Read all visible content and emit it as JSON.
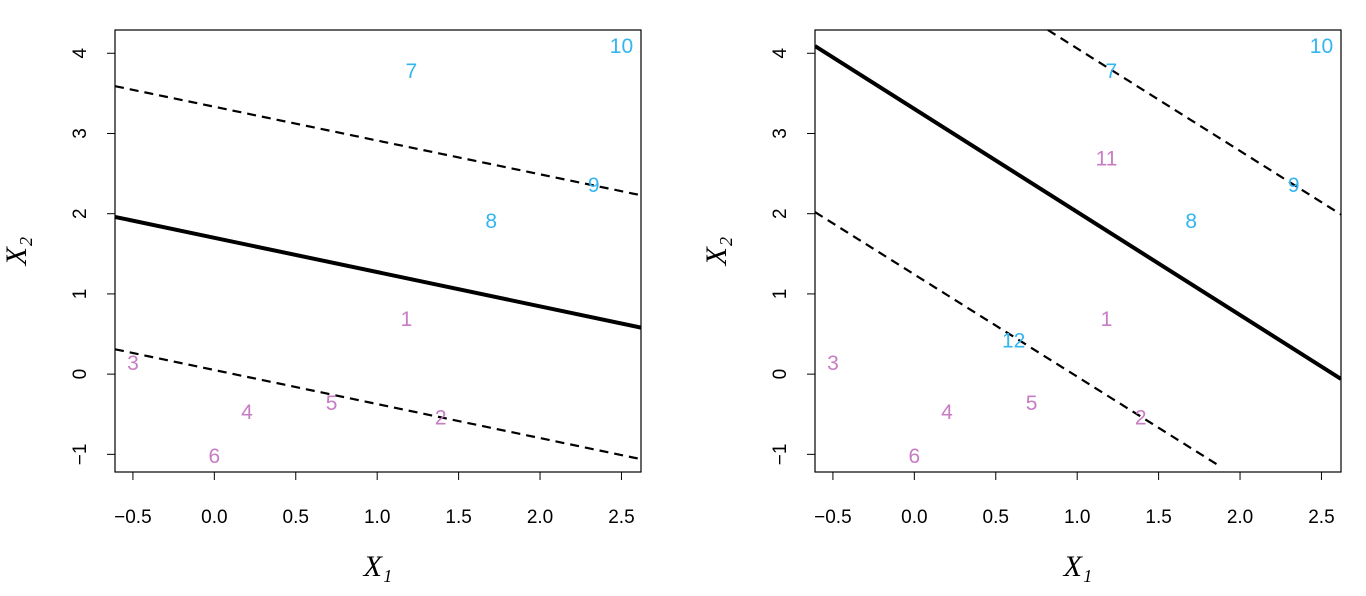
{
  "chart_data": [
    {
      "type": "scatter",
      "xlabel": "X₁",
      "ylabel": "X₂",
      "xlim": [
        -0.61,
        2.62
      ],
      "ylim": [
        -1.22,
        4.29
      ],
      "xticks": [
        {
          "value": -0.5,
          "label": "−0.5"
        },
        {
          "value": 0,
          "label": "0.0"
        },
        0.5,
        {
          "value": 1,
          "label": "1.0"
        },
        1.5,
        {
          "value": 2,
          "label": "2.0"
        },
        2.5
      ],
      "yticks": [
        {
          "value": -1,
          "label": "−1"
        },
        0,
        1,
        2,
        3,
        4
      ],
      "series": [
        {
          "color": "#c77cc4",
          "labels": [
            "1",
            "2",
            "3",
            "4",
            "5",
            "6"
          ],
          "x": [
            1.18,
            1.39,
            -0.5,
            0.2,
            0.72,
            0.0
          ],
          "values": [
            0.67,
            -0.56,
            0.12,
            -0.49,
            -0.38,
            -1.04
          ]
        },
        {
          "color": "#33b5f0",
          "labels": [
            "7",
            "8",
            "9",
            "10"
          ],
          "x": [
            1.21,
            1.7,
            2.33,
            2.5
          ],
          "values": [
            3.76,
            1.89,
            2.34,
            4.07
          ]
        }
      ],
      "lines": [
        {
          "style": "solid",
          "x": [
            -0.61,
            2.62
          ],
          "values": [
            1.96,
            0.58
          ]
        },
        {
          "style": "dashed",
          "x": [
            -0.61,
            2.62
          ],
          "values": [
            3.59,
            2.23
          ]
        },
        {
          "style": "dashed",
          "x": [
            -0.61,
            2.62
          ],
          "values": [
            0.31,
            -1.06
          ]
        }
      ]
    },
    {
      "type": "scatter",
      "xlabel": "X₁",
      "ylabel": "X₂",
      "xlim": [
        -0.61,
        2.62
      ],
      "ylim": [
        -1.22,
        4.29
      ],
      "xticks": [
        {
          "value": -0.5,
          "label": "−0.5"
        },
        {
          "value": 0,
          "label": "0.0"
        },
        0.5,
        {
          "value": 1,
          "label": "1.0"
        },
        1.5,
        {
          "value": 2,
          "label": "2.0"
        },
        2.5
      ],
      "yticks": [
        {
          "value": -1,
          "label": "−1"
        },
        0,
        1,
        2,
        3,
        4
      ],
      "series": [
        {
          "color": "#c77cc4",
          "labels": [
            "1",
            "2",
            "3",
            "4",
            "5",
            "6",
            "11"
          ],
          "x": [
            1.18,
            1.39,
            -0.5,
            0.2,
            0.72,
            0.0,
            1.18
          ],
          "values": [
            0.67,
            -0.56,
            0.12,
            -0.49,
            -0.38,
            -1.04,
            2.67
          ]
        },
        {
          "color": "#33b5f0",
          "labels": [
            "7",
            "8",
            "9",
            "10",
            "12"
          ],
          "x": [
            1.21,
            1.7,
            2.33,
            2.5,
            0.61
          ],
          "values": [
            3.76,
            1.89,
            2.34,
            4.07,
            0.4
          ]
        }
      ],
      "lines": [
        {
          "style": "solid",
          "x": [
            -0.61,
            2.62
          ],
          "values": [
            4.09,
            -0.06
          ]
        },
        {
          "style": "dashed",
          "x": [
            0.82,
            2.62
          ],
          "values": [
            4.29,
            1.99
          ]
        },
        {
          "style": "dashed",
          "x": [
            -0.61,
            1.87
          ],
          "values": [
            2.02,
            -1.14
          ]
        }
      ]
    }
  ]
}
